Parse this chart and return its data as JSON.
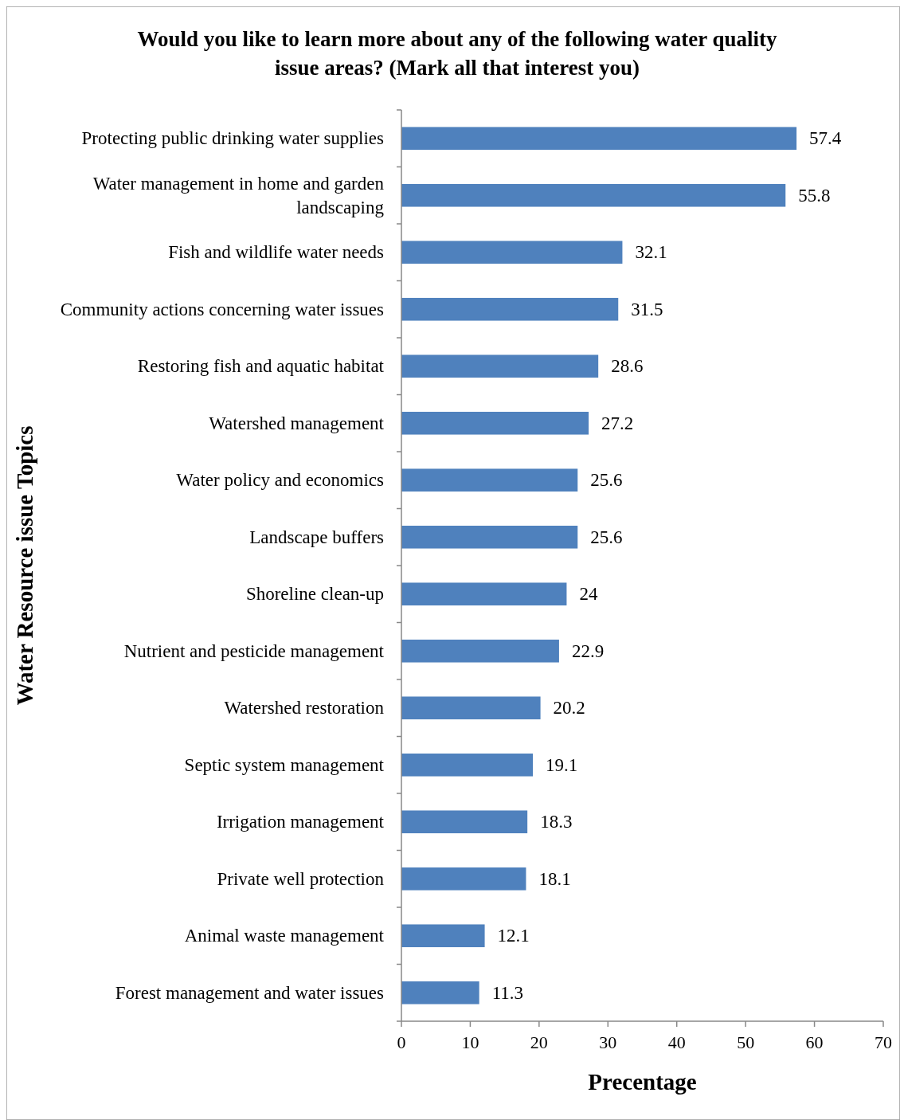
{
  "chart_data": {
    "type": "bar",
    "orientation": "horizontal",
    "title": "Would you like to learn more about any of the following water quality issue areas? (Mark all that interest you)",
    "xlabel": "Precentage",
    "ylabel": "Water Resource issue Topics",
    "categories": [
      "Protecting public drinking water supplies",
      "Water management in home and garden landscaping",
      "Fish and wildlife water needs",
      "Community actions concerning water issues",
      "Restoring fish and aquatic habitat",
      "Watershed management",
      "Water policy and economics",
      "Landscape buffers",
      "Shoreline clean-up",
      "Nutrient and pesticide management",
      "Watershed restoration",
      "Septic system management",
      "Irrigation management",
      "Private well protection",
      "Animal waste management",
      "Forest management and water issues"
    ],
    "values": [
      57.4,
      55.8,
      32.1,
      31.5,
      28.6,
      27.2,
      25.6,
      25.6,
      24,
      22.9,
      20.2,
      19.1,
      18.3,
      18.1,
      12.1,
      11.3
    ],
    "color": "#4f81bd",
    "xlim": [
      0,
      70
    ],
    "xticks": [
      0,
      10,
      20,
      30,
      40,
      50,
      60,
      70
    ],
    "data_labels": true,
    "grid": false
  }
}
